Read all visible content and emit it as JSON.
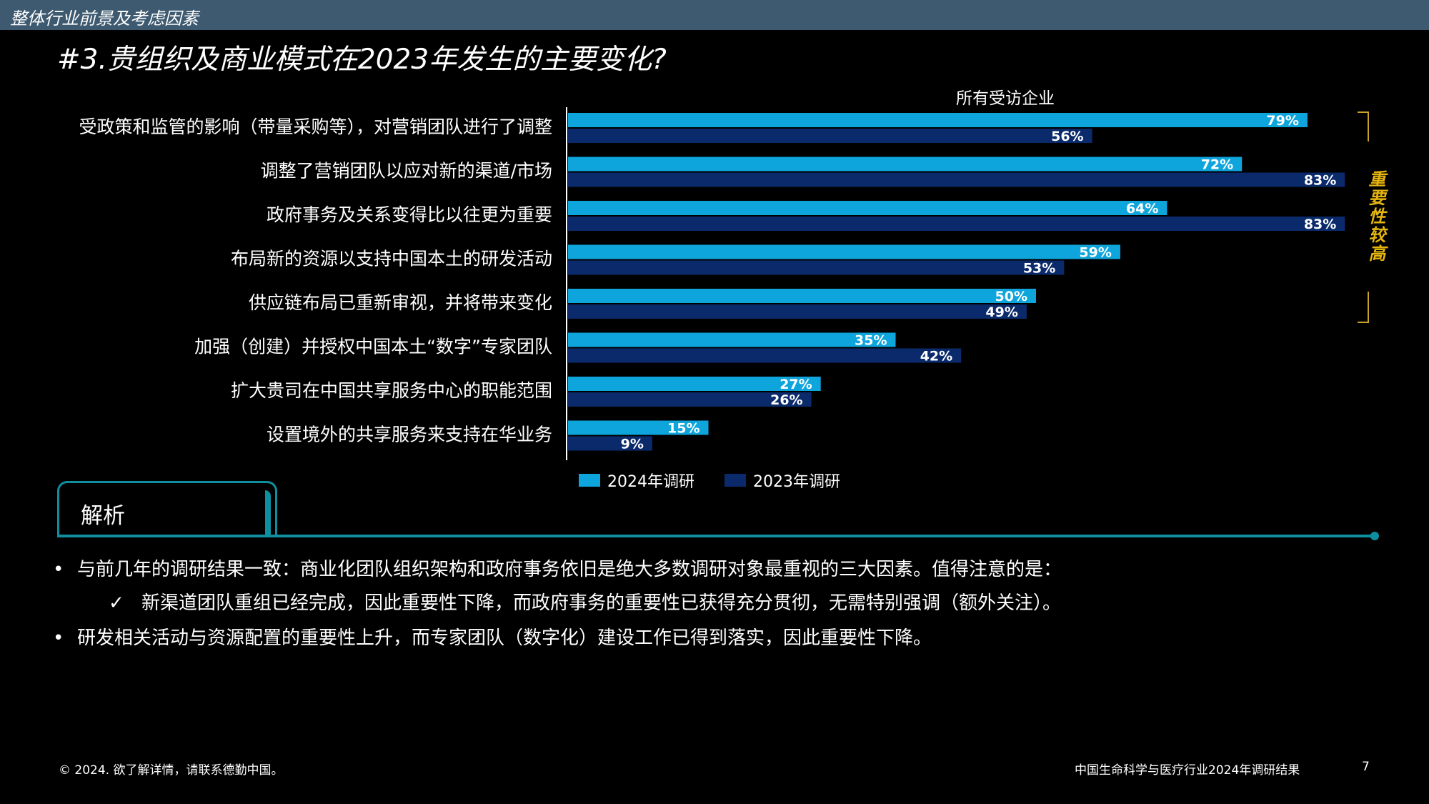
{
  "header": {
    "section": "整体行业前景及考虑因素",
    "title": "#3.贵组织及商业模式在2023年发生的主要变化?"
  },
  "colors": {
    "series_2024": "#0ea5dc",
    "series_2023": "#0b2a6b",
    "accent": "#0e8fa0",
    "highlight": "#e5b50f"
  },
  "chart_data": {
    "type": "bar",
    "orientation": "horizontal",
    "title": "所有受访企业",
    "categories": [
      "受政策和监管的影响（带量采购等），对营销团队进行了调整",
      "调整了营销团队以应对新的渠道/市场",
      "政府事务及关系变得比以往更为重要",
      "布局新的资源以支持中国本土的研发活动",
      "供应链布局已重新审视，并将带来变化",
      "加强（创建）并授权中国本土“数字”专家团队",
      "扩大贵司在中国共享服务中心的职能范围",
      "设置境外的共享服务来支持在华业务"
    ],
    "series": [
      {
        "name": "2024年调研",
        "values": [
          79,
          72,
          64,
          59,
          50,
          35,
          27,
          15
        ]
      },
      {
        "name": "2023年调研",
        "values": [
          56,
          83,
          83,
          53,
          49,
          42,
          26,
          9
        ]
      }
    ],
    "unit": "%",
    "xlim": [
      0,
      100
    ],
    "legend": "bottom",
    "grid": false,
    "annotation": "重要性较高"
  },
  "analysis": {
    "heading": "解析",
    "bullets": [
      "与前几年的调研结果一致：商业化团队组织架构和政府事务依旧是绝大多数调研对象最重视的三大因素。值得注意的是：",
      "新渠道团队重组已经完成，因此重要性下降，而政府事务的重要性已获得充分贯彻，无需特别强调（额外关注）。",
      "研发相关活动与资源配置的重要性上升，而专家团队（数字化）建设工作已得到落实，因此重要性下降。"
    ],
    "bullet_marks": [
      "•",
      "✓",
      "•"
    ]
  },
  "footer": {
    "copyright": "© 2024. 欲了解详情，请联系德勤中国。",
    "report": "中国生命科学与医疗行业2024年调研结果",
    "page": "7"
  }
}
